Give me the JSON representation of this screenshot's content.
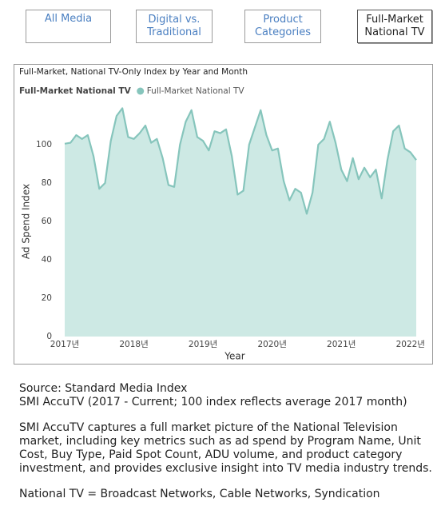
{
  "tabs": [
    "All Media",
    "Digital vs. Traditional",
    "Product Categories",
    "Full-Market National TV"
  ],
  "chart_data": {
    "type": "area",
    "title": "Full-Market, National TV-Only Index by Year and Month",
    "legend_title": "Full-Market National TV",
    "x_label": "Year",
    "y_label": "Ad Spend Index",
    "categories": [
      "2017년",
      null,
      null,
      null,
      null,
      null,
      null,
      null,
      null,
      null,
      null,
      null,
      "2018년",
      null,
      null,
      null,
      null,
      null,
      null,
      null,
      null,
      null,
      null,
      null,
      "2019년",
      null,
      null,
      null,
      null,
      null,
      null,
      null,
      null,
      null,
      null,
      null,
      "2020년",
      null,
      null,
      null,
      null,
      null,
      null,
      null,
      null,
      null,
      null,
      null,
      "2021년",
      null,
      null,
      null,
      null,
      null,
      null,
      null,
      null,
      null,
      null,
      null,
      "2022년",
      null
    ],
    "series": [
      {
        "name": "Full-Market National TV",
        "color": "#86c5bc",
        "fill": "#cde9e4",
        "values": [
          100.5,
          101,
          105,
          103,
          105,
          94,
          77,
          80,
          102,
          115,
          119,
          104,
          103,
          106,
          110,
          101,
          103,
          93,
          79,
          78,
          100,
          112,
          118,
          104,
          102,
          97,
          107,
          106,
          108,
          94,
          74,
          76,
          100,
          109,
          118,
          105,
          97,
          98,
          81,
          71,
          77,
          75,
          64,
          75,
          100,
          103,
          112,
          101,
          87,
          81,
          93,
          82,
          88,
          83,
          87,
          72,
          92,
          107,
          110,
          98,
          96,
          92
        ]
      }
    ],
    "ylim": [
      0,
      120
    ],
    "yticks": [
      0,
      20,
      40,
      60,
      80,
      100
    ]
  },
  "notes": {
    "source": "Source: Standard Media Index",
    "coverage": "SMI AccuTV (2017 - Current; 100 index reflects average 2017 month)",
    "description": "SMI AccuTV captures a full market picture of the National Television market, including key metrics such as ad spend by Program Name, Unit Cost, Buy Type, Paid Spot Count, ADU volume, and product category investment, and provides exclusive insight into TV media industry trends.",
    "definition": "National TV = Broadcast Networks, Cable Networks, Syndication"
  }
}
